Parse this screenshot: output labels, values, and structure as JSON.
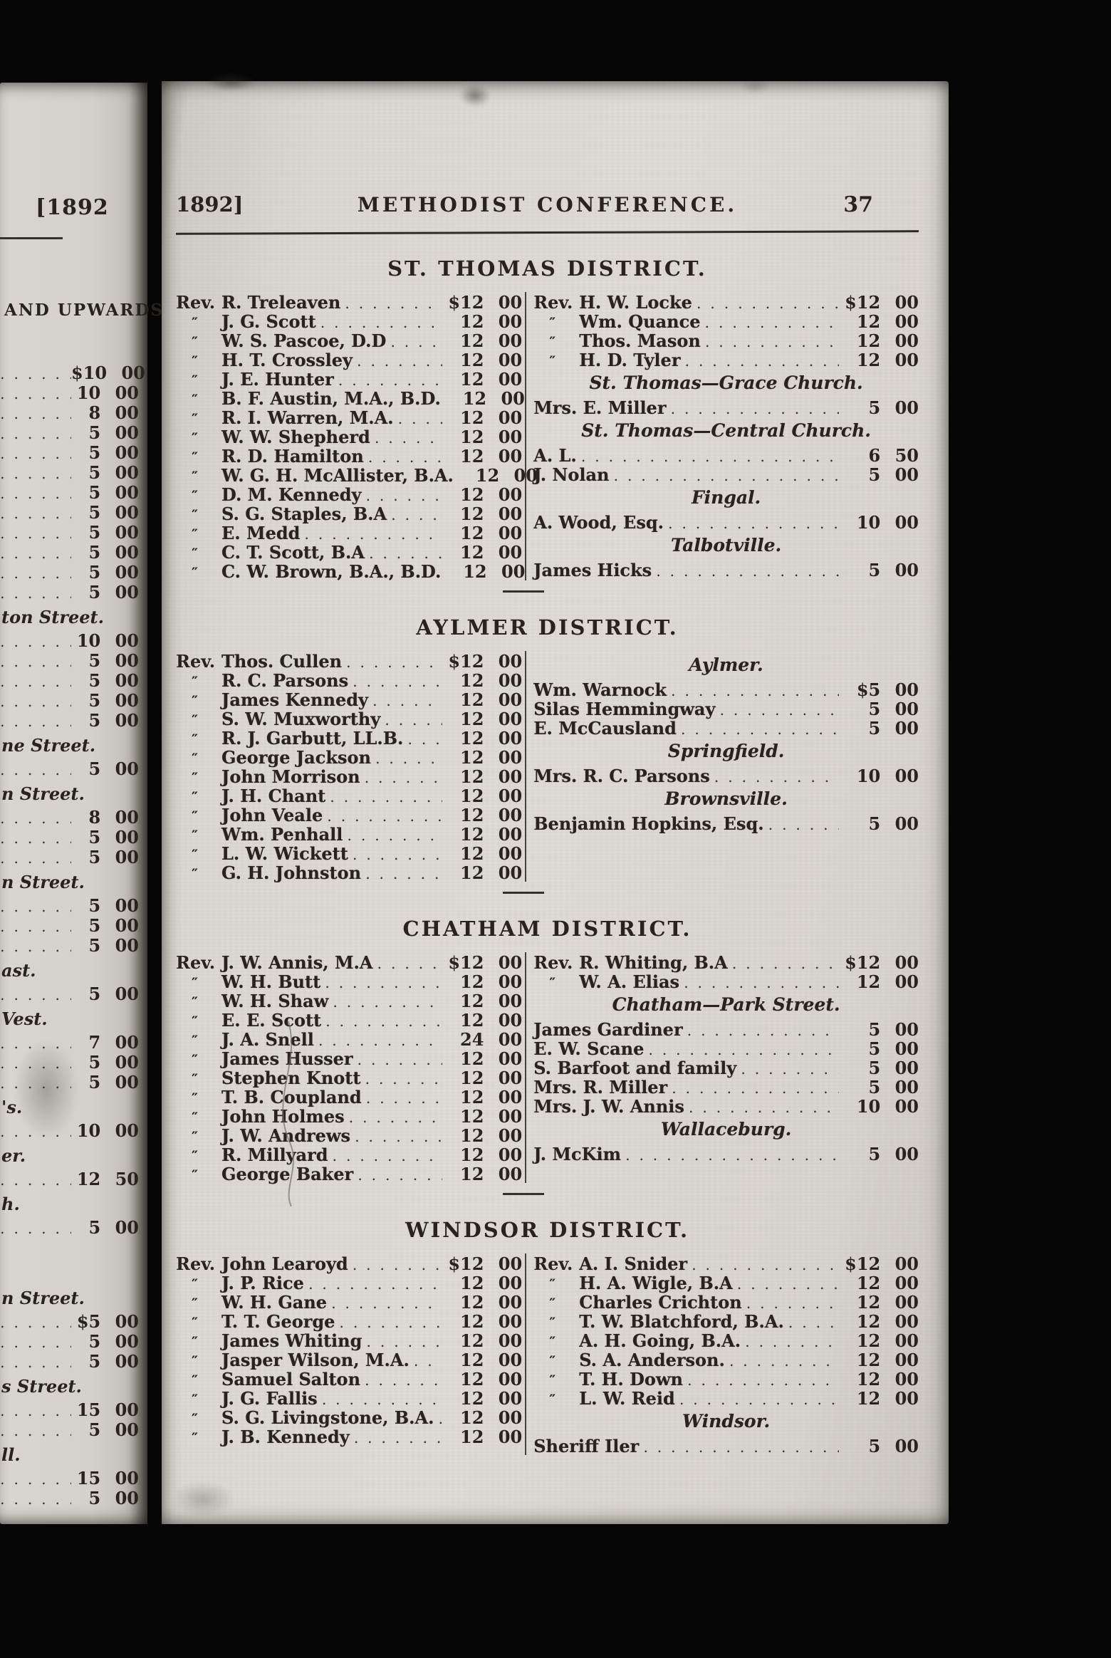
{
  "colors": {
    "background": "#060606",
    "paper": "#d8d5cf",
    "ink": "#28241d"
  },
  "scan": {
    "left_page_fragment": {
      "year": "[1892",
      "heading": "AND UPWARDS.",
      "rows": [
        {
          "amount": "$10 00"
        },
        {
          "amount": "10 00"
        },
        {
          "amount": "8 00"
        },
        {
          "amount": "5 00"
        },
        {
          "amount": "5 00"
        },
        {
          "amount": "5 00"
        },
        {
          "amount": "5 00"
        },
        {
          "amount": "5 00"
        },
        {
          "amount": "5 00"
        },
        {
          "amount": "5 00"
        },
        {
          "amount": "5 00"
        },
        {
          "amount": "5 00"
        },
        {
          "subheading": "ton Street."
        },
        {
          "amount": "10 00"
        },
        {
          "amount": "5 00"
        },
        {
          "amount": "5 00"
        },
        {
          "amount": "5 00"
        },
        {
          "amount": "5 00"
        },
        {
          "subheading": "ne Street."
        },
        {
          "amount": "5 00"
        },
        {
          "subheading": "n Street."
        },
        {
          "amount": "8 00"
        },
        {
          "amount": "5 00"
        },
        {
          "amount": "5 00"
        },
        {
          "subheading": "n Street."
        },
        {
          "amount": "5 00"
        },
        {
          "amount": "5 00"
        },
        {
          "amount": "5 00"
        },
        {
          "subheading": "ast."
        },
        {
          "amount": "5 00"
        },
        {
          "subheading": "Vest."
        },
        {
          "amount": "7 00"
        },
        {
          "amount": "5 00"
        },
        {
          "amount": "5 00"
        },
        {
          "subheading": "'s."
        },
        {
          "amount": "10 00"
        },
        {
          "subheading": "er."
        },
        {
          "amount": "12 50"
        },
        {
          "subheading": "h."
        },
        {
          "amount": "5 00"
        },
        {
          "spacer": true
        },
        {
          "subheading": "n Street."
        },
        {
          "amount": "$5 00"
        },
        {
          "amount": "5 00"
        },
        {
          "amount": "5 00"
        },
        {
          "subheading": "s Street."
        },
        {
          "amount": "15 00"
        },
        {
          "amount": "5 00"
        },
        {
          "subheading": "ll."
        },
        {
          "amount": "15 00"
        },
        {
          "amount": "5 00"
        }
      ]
    },
    "main_page": {
      "header": {
        "year": "1892]",
        "title": "METHODIST CONFERENCE.",
        "page_number": "37"
      },
      "districts": [
        {
          "title": "ST. THOMAS DISTRICT.",
          "left_column": [
            {
              "prefix": "Rev.",
              "name": "R. Treleaven",
              "amount": "$12 00"
            },
            {
              "prefix": "″",
              "name": "J. G. Scott",
              "amount": "12 00"
            },
            {
              "prefix": "″",
              "name": "W. S. Pascoe, D.D",
              "amount": "12 00"
            },
            {
              "prefix": "″",
              "name": "H. T. Crossley",
              "amount": "12 00"
            },
            {
              "prefix": "″",
              "name": "J. E. Hunter",
              "amount": "12 00"
            },
            {
              "prefix": "″",
              "name": "B. F. Austin, M.A., B.D.",
              "amount": "12 00"
            },
            {
              "prefix": "″",
              "name": "R. I. Warren, M.A.",
              "amount": "12 00"
            },
            {
              "prefix": "″",
              "name": "W. W. Shepherd",
              "amount": "12 00"
            },
            {
              "prefix": "″",
              "name": "R. D. Hamilton",
              "amount": "12 00"
            },
            {
              "prefix": "″",
              "name": "W. G. H. McAllister, B.A.",
              "amount": "12 00"
            },
            {
              "prefix": "″",
              "name": "D. M. Kennedy",
              "amount": "12 00"
            },
            {
              "prefix": "″",
              "name": "S. G. Staples, B.A",
              "amount": "12 00"
            },
            {
              "prefix": "″",
              "name": "E. Medd",
              "amount": "12 00"
            },
            {
              "prefix": "″",
              "name": "C. T. Scott, B.A",
              "amount": "12 00"
            },
            {
              "prefix": "″",
              "name": "C. W. Brown, B.A., B.D.",
              "amount": "12 00"
            }
          ],
          "right_column": [
            {
              "prefix": "Rev.",
              "name": "H. W. Locke",
              "amount": "$12 00"
            },
            {
              "prefix": "″",
              "name": "Wm. Quance",
              "amount": "12 00"
            },
            {
              "prefix": "″",
              "name": "Thos. Mason",
              "amount": "12 00"
            },
            {
              "prefix": "″",
              "name": "H. D. Tyler",
              "amount": "12 00"
            },
            {
              "subheading": "St. Thomas—Grace Church."
            },
            {
              "name": "Mrs. E. Miller",
              "amount": "5 00"
            },
            {
              "subheading": "St. Thomas—Central Church."
            },
            {
              "name": "A. L.",
              "amount": "6 50"
            },
            {
              "name": "J. Nolan",
              "amount": "5 00"
            },
            {
              "subheading": "Fingal."
            },
            {
              "name": "A. Wood, Esq.",
              "amount": "10 00"
            },
            {
              "subheading": "Talbotville."
            },
            {
              "name": "James Hicks",
              "amount": "5 00"
            }
          ]
        },
        {
          "title": "AYLMER DISTRICT.",
          "left_column": [
            {
              "prefix": "Rev.",
              "name": "Thos. Cullen",
              "amount": "$12 00"
            },
            {
              "prefix": "″",
              "name": "R. C. Parsons",
              "amount": "12 00"
            },
            {
              "prefix": "″",
              "name": "James Kennedy",
              "amount": "12 00"
            },
            {
              "prefix": "″",
              "name": "S. W. Muxworthy",
              "amount": "12 00"
            },
            {
              "prefix": "″",
              "name": "R. J. Garbutt, LL.B.",
              "amount": "12 00"
            },
            {
              "prefix": "″",
              "name": "George Jackson",
              "amount": "12 00"
            },
            {
              "prefix": "″",
              "name": "John Morrison",
              "amount": "12 00"
            },
            {
              "prefix": "″",
              "name": "J. H. Chant",
              "amount": "12 00"
            },
            {
              "prefix": "″",
              "name": "John Veale",
              "amount": "12 00"
            },
            {
              "prefix": "″",
              "name": "Wm. Penhall",
              "amount": "12 00"
            },
            {
              "prefix": "″",
              "name": "L. W. Wickett",
              "amount": "12 00"
            },
            {
              "prefix": "″",
              "name": "G. H. Johnston",
              "amount": "12 00"
            }
          ],
          "right_column": [
            {
              "subheading": "Aylmer."
            },
            {
              "name": "Wm. Warnock",
              "amount": "$5 00"
            },
            {
              "name": "Silas Hemmingway",
              "amount": "5 00"
            },
            {
              "name": "E. McCausland",
              "amount": "5 00"
            },
            {
              "subheading": "Springfield."
            },
            {
              "name": "Mrs. R. C. Parsons",
              "amount": "10 00"
            },
            {
              "subheading": "Brownsville."
            },
            {
              "name": "Benjamin Hopkins, Esq.",
              "amount": "5 00"
            }
          ]
        },
        {
          "title": "CHATHAM DISTRICT.",
          "left_column": [
            {
              "prefix": "Rev.",
              "name": "J. W. Annis, M.A",
              "amount": "$12 00"
            },
            {
              "prefix": "″",
              "name": "W. H. Butt",
              "amount": "12 00"
            },
            {
              "prefix": "″",
              "name": "W. H. Shaw",
              "amount": "12 00"
            },
            {
              "prefix": "″",
              "name": "E. E. Scott",
              "amount": "12 00"
            },
            {
              "prefix": "″",
              "name": "J. A. Snell",
              "amount": "24 00"
            },
            {
              "prefix": "″",
              "name": "James Husser",
              "amount": "12 00"
            },
            {
              "prefix": "″",
              "name": "Stephen Knott",
              "amount": "12 00"
            },
            {
              "prefix": "″",
              "name": "T. B. Coupland",
              "amount": "12 00"
            },
            {
              "prefix": "″",
              "name": "John Holmes",
              "amount": "12 00"
            },
            {
              "prefix": "″",
              "name": "J. W. Andrews",
              "amount": "12 00"
            },
            {
              "prefix": "″",
              "name": "R. Millyard",
              "amount": "12 00"
            },
            {
              "prefix": "″",
              "name": "George Baker",
              "amount": "12 00"
            }
          ],
          "right_column": [
            {
              "prefix": "Rev.",
              "name": "R. Whiting, B.A",
              "amount": "$12 00"
            },
            {
              "prefix": "″",
              "name": "W. A. Elias",
              "amount": "12 00"
            },
            {
              "subheading": "Chatham—Park Street."
            },
            {
              "name": "James Gardiner",
              "amount": "5 00"
            },
            {
              "name": "E. W. Scane",
              "amount": "5 00"
            },
            {
              "name": "S. Barfoot and family",
              "amount": "5 00"
            },
            {
              "name": "Mrs. R. Miller",
              "amount": "5 00"
            },
            {
              "name": "Mrs. J. W. Annis",
              "amount": "10 00"
            },
            {
              "subheading": "Wallaceburg."
            },
            {
              "name": "J. McKim",
              "amount": "5 00"
            }
          ]
        },
        {
          "title": "WINDSOR DISTRICT.",
          "left_column": [
            {
              "prefix": "Rev.",
              "name": "John Learoyd",
              "amount": "$12 00"
            },
            {
              "prefix": "″",
              "name": "J. P. Rice",
              "amount": "12 00"
            },
            {
              "prefix": "″",
              "name": "W. H. Gane",
              "amount": "12 00"
            },
            {
              "prefix": "″",
              "name": "T. T. George",
              "amount": "12 00"
            },
            {
              "prefix": "″",
              "name": "James Whiting",
              "amount": "12 00"
            },
            {
              "prefix": "″",
              "name": "Jasper Wilson, M.A.",
              "amount": "12 00"
            },
            {
              "prefix": "″",
              "name": "Samuel Salton",
              "amount": "12 00"
            },
            {
              "prefix": "″",
              "name": "J. G. Fallis",
              "amount": "12 00"
            },
            {
              "prefix": "″",
              "name": "S. G. Livingstone, B.A.",
              "amount": "12 00"
            },
            {
              "prefix": "″",
              "name": "J. B. Kennedy",
              "amount": "12 00"
            }
          ],
          "right_column": [
            {
              "prefix": "Rev.",
              "name": "A. I. Snider",
              "amount": "$12 00"
            },
            {
              "prefix": "″",
              "name": "H. A. Wigle, B.A",
              "amount": "12 00"
            },
            {
              "prefix": "″",
              "name": "Charles Crichton",
              "amount": "12 00"
            },
            {
              "prefix": "″",
              "name": "T. W. Blatchford, B.A.",
              "amount": "12 00"
            },
            {
              "prefix": "″",
              "name": "A. H. Going, B.A.",
              "amount": "12 00"
            },
            {
              "prefix": "″",
              "name": "S. A. Anderson.",
              "amount": "12 00"
            },
            {
              "prefix": "″",
              "name": "T. H. Down",
              "amount": "12 00"
            },
            {
              "prefix": "″",
              "name": "L. W. Reid",
              "amount": "12 00"
            },
            {
              "subheading": "Windsor."
            },
            {
              "name": "Sheriff Iler",
              "amount": "5 00"
            }
          ]
        }
      ]
    }
  }
}
